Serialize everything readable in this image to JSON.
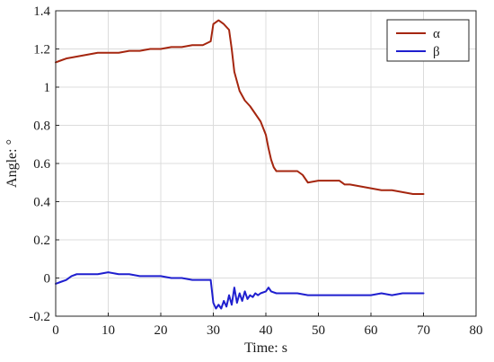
{
  "chart_data": {
    "type": "line",
    "title": "",
    "xlabel": "Time: s",
    "ylabel": "Angle: °",
    "xlim": [
      0,
      80
    ],
    "ylim": [
      -0.2,
      1.4
    ],
    "xticks": [
      "0",
      "10",
      "20",
      "30",
      "40",
      "50",
      "60",
      "70",
      "80"
    ],
    "yticks": [
      "1.4",
      "1.2",
      "1",
      "0.8",
      "0.6",
      "0.4",
      "0.2",
      "0",
      "-0.2"
    ],
    "grid": true,
    "legend_position": "top-right",
    "series": [
      {
        "name": "α",
        "color": "#a5260f",
        "x": [
          0,
          1,
          2,
          4,
          6,
          8,
          10,
          12,
          14,
          16,
          18,
          20,
          22,
          24,
          26,
          28,
          29.5,
          30,
          31,
          32,
          33,
          33.5,
          34,
          35,
          36,
          37,
          38,
          39,
          40,
          40.5,
          41,
          41.5,
          42,
          44,
          46,
          47,
          48,
          50,
          52,
          54,
          55,
          56,
          58,
          60,
          62,
          64,
          66,
          68,
          70
        ],
        "y": [
          1.13,
          1.14,
          1.15,
          1.16,
          1.17,
          1.18,
          1.18,
          1.18,
          1.19,
          1.19,
          1.2,
          1.2,
          1.21,
          1.21,
          1.22,
          1.22,
          1.24,
          1.33,
          1.35,
          1.33,
          1.3,
          1.2,
          1.08,
          0.98,
          0.93,
          0.9,
          0.86,
          0.82,
          0.75,
          0.68,
          0.62,
          0.58,
          0.56,
          0.56,
          0.56,
          0.54,
          0.5,
          0.51,
          0.51,
          0.51,
          0.49,
          0.49,
          0.48,
          0.47,
          0.46,
          0.46,
          0.45,
          0.44,
          0.44
        ]
      },
      {
        "name": "β",
        "color": "#1f1fcf",
        "x": [
          0,
          1,
          2,
          3,
          4,
          6,
          8,
          10,
          12,
          14,
          16,
          18,
          20,
          22,
          24,
          26,
          28,
          29.5,
          30,
          30.5,
          31,
          31.5,
          32,
          32.5,
          33,
          33.5,
          34,
          34.5,
          35,
          35.5,
          36,
          36.5,
          37,
          37.5,
          38,
          38.5,
          39,
          40,
          40.5,
          41,
          42,
          44,
          46,
          48,
          50,
          52,
          54,
          56,
          58,
          60,
          62,
          64,
          66,
          68,
          70
        ],
        "y": [
          -0.03,
          -0.02,
          -0.01,
          0.01,
          0.02,
          0.02,
          0.02,
          0.03,
          0.02,
          0.02,
          0.01,
          0.01,
          0.01,
          0.0,
          0.0,
          -0.01,
          -0.01,
          -0.01,
          -0.13,
          -0.16,
          -0.14,
          -0.16,
          -0.12,
          -0.15,
          -0.09,
          -0.14,
          -0.05,
          -0.13,
          -0.08,
          -0.12,
          -0.07,
          -0.11,
          -0.09,
          -0.1,
          -0.08,
          -0.09,
          -0.08,
          -0.07,
          -0.05,
          -0.07,
          -0.08,
          -0.08,
          -0.08,
          -0.09,
          -0.09,
          -0.09,
          -0.09,
          -0.09,
          -0.09,
          -0.09,
          -0.08,
          -0.09,
          -0.08,
          -0.08,
          -0.08
        ]
      }
    ]
  }
}
